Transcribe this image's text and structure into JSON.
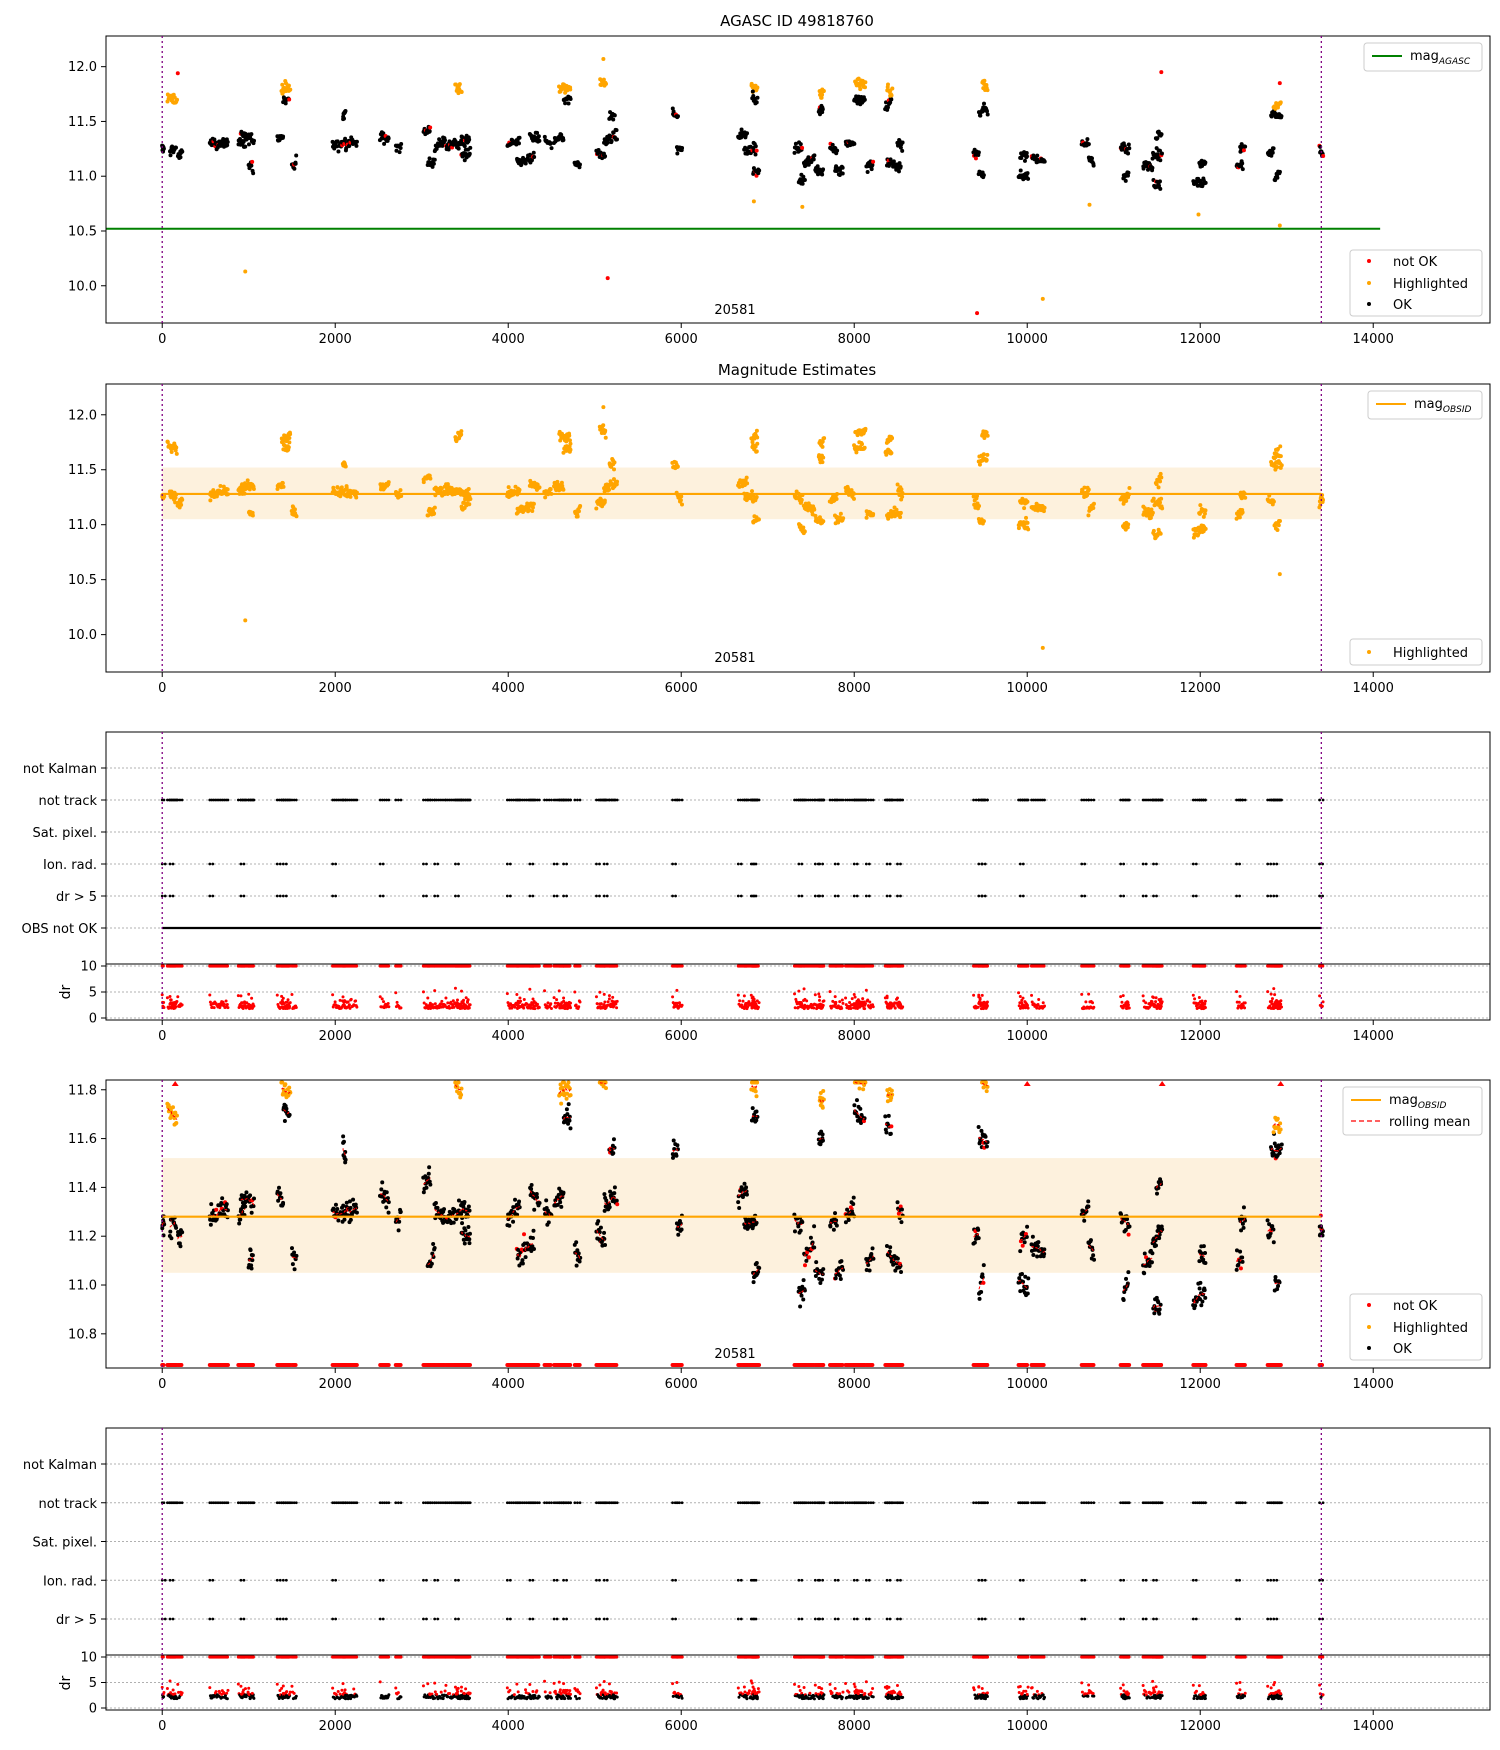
{
  "figure": {
    "obsid_label": "20581"
  },
  "chart_data": [
    {
      "id": "p1",
      "type": "scatter",
      "title": "AGASC ID 49818760",
      "xlim": [
        -650,
        15350
      ],
      "ylim": [
        9.66,
        12.28
      ],
      "xticks": [
        0,
        2000,
        4000,
        6000,
        8000,
        10000,
        12000,
        14000
      ],
      "yticks": [
        10.0,
        10.5,
        11.0,
        11.5,
        12.0
      ],
      "vlines": [
        0,
        13400
      ],
      "hline": {
        "y": 10.52,
        "x0": -650,
        "x1": 14080,
        "color": "#008000",
        "label": "mag_AGASC"
      },
      "point_legend": [
        {
          "label": "not OK",
          "color": "#ff0000"
        },
        {
          "label": "Highlighted",
          "color": "#ffa500"
        },
        {
          "label": "OK",
          "color": "#000000"
        }
      ],
      "outliers": [
        {
          "x": 960,
          "y": 10.13,
          "color": "#ffa500"
        },
        {
          "x": 5150,
          "y": 10.07,
          "color": "#ff0000"
        },
        {
          "x": 9420,
          "y": 9.75,
          "color": "#ff0000"
        },
        {
          "x": 10180,
          "y": 9.88,
          "color": "#ffa500"
        },
        {
          "x": 180,
          "y": 11.94,
          "color": "#ff0000"
        },
        {
          "x": 11550,
          "y": 11.95,
          "color": "#ff0000"
        },
        {
          "x": 12920,
          "y": 11.85,
          "color": "#ff0000"
        },
        {
          "x": 5100,
          "y": 12.07,
          "color": "#ffa500"
        },
        {
          "x": 6840,
          "y": 10.77,
          "color": "#ffa500"
        },
        {
          "x": 7400,
          "y": 10.72,
          "color": "#ffa500"
        },
        {
          "x": 10720,
          "y": 10.74,
          "color": "#ffa500"
        },
        {
          "x": 11980,
          "y": 10.65,
          "color": "#ffa500"
        },
        {
          "x": 12920,
          "y": 10.55,
          "color": "#ffa500"
        }
      ]
    },
    {
      "id": "p2",
      "type": "scatter",
      "title": "Magnitude Estimates",
      "xlim": [
        -650,
        15350
      ],
      "ylim": [
        9.66,
        12.28
      ],
      "xticks": [
        0,
        2000,
        4000,
        6000,
        8000,
        10000,
        12000,
        14000
      ],
      "yticks": [
        10.0,
        10.5,
        11.0,
        11.5,
        12.0
      ],
      "vlines": [
        0,
        13400
      ],
      "mean": {
        "y": 11.28,
        "band": [
          11.05,
          11.52
        ],
        "x0": 0,
        "x1": 13400,
        "color": "#ffa500",
        "label": "mag_OBSID"
      },
      "point_legend": [
        {
          "label": "Highlighted",
          "color": "#ffa500"
        }
      ],
      "outliers": [
        {
          "x": 960,
          "y": 10.13,
          "color": "#ffa500"
        },
        {
          "x": 10180,
          "y": 9.88,
          "color": "#ffa500"
        },
        {
          "x": 5100,
          "y": 12.07,
          "color": "#ffa500"
        },
        {
          "x": 12920,
          "y": 10.55,
          "color": "#ffa500"
        }
      ]
    },
    {
      "id": "p3",
      "type": "scatter",
      "title": "",
      "xlim": [
        -650,
        15350
      ],
      "xticks": [
        0,
        2000,
        4000,
        6000,
        8000,
        10000,
        12000,
        14000
      ],
      "vlines": [
        0,
        13400
      ],
      "flag_labels": [
        "not Kalman",
        "not track",
        "Sat. pixel.",
        "Ion. rad.",
        "dr > 5",
        "OBS not OK"
      ],
      "flags_active": {
        "not track": "dense",
        "Ion. rad.": "sparse",
        "dr > 5": "sparse",
        "OBS not OK": "full"
      },
      "dr_ylabel": "dr",
      "dr_yticks": [
        0,
        5,
        10
      ],
      "dr_ylim": [
        0,
        10
      ]
    },
    {
      "id": "p4",
      "type": "scatter",
      "title": "",
      "xlim": [
        -650,
        15350
      ],
      "ylim": [
        10.66,
        11.84
      ],
      "xticks": [
        0,
        2000,
        4000,
        6000,
        8000,
        10000,
        12000,
        14000
      ],
      "yticks": [
        10.8,
        11.0,
        11.2,
        11.4,
        11.6,
        11.8
      ],
      "vlines": [
        0,
        13400
      ],
      "mean": {
        "y": 11.28,
        "band": [
          11.05,
          11.52
        ],
        "x0": 0,
        "x1": 13400,
        "color": "#ffa500",
        "label": "mag_OBSID"
      },
      "line_legend": [
        {
          "label": "mag_OBSID",
          "color": "#ffa500",
          "style": "solid"
        },
        {
          "label": "rolling mean",
          "color": "#ff0000",
          "style": "dashed"
        }
      ],
      "point_legend": [
        {
          "label": "not OK",
          "color": "#ff0000"
        },
        {
          "label": "Highlighted",
          "color": "#ffa500"
        },
        {
          "label": "OK",
          "color": "#000000"
        }
      ]
    },
    {
      "id": "p5",
      "type": "scatter",
      "title": "",
      "xlim": [
        -650,
        15350
      ],
      "xticks": [
        0,
        2000,
        4000,
        6000,
        8000,
        10000,
        12000,
        14000
      ],
      "vlines": [
        0,
        13400
      ],
      "flag_labels": [
        "not Kalman",
        "not track",
        "Sat. pixel.",
        "Ion. rad.",
        "dr > 5"
      ],
      "flags_active": {
        "not track": "dense",
        "Ion. rad.": "sparse",
        "dr > 5": "sparse"
      },
      "dr_ylabel": "dr",
      "dr_yticks": [
        0,
        5,
        10
      ],
      "dr_ylim": [
        0,
        10
      ]
    }
  ],
  "observations": [
    {
      "x0": 0,
      "x1": 20,
      "m": 11.25,
      "hi": false
    },
    {
      "x0": 60,
      "x1": 170,
      "m": 11.7,
      "hi": true
    },
    {
      "x0": 90,
      "x1": 160,
      "m": 11.25,
      "hi": false
    },
    {
      "x0": 180,
      "x1": 230,
      "m": 11.2,
      "hi": false
    },
    {
      "x0": 550,
      "x1": 760,
      "m": 11.3,
      "hi": false
    },
    {
      "x0": 880,
      "x1": 960,
      "m": 11.3,
      "hi": false
    },
    {
      "x0": 910,
      "x1": 1060,
      "m": 11.35,
      "hi": false
    },
    {
      "x0": 1000,
      "x1": 1050,
      "m": 11.1,
      "hi": false
    },
    {
      "x0": 1330,
      "x1": 1400,
      "m": 11.35,
      "hi": false
    },
    {
      "x0": 1380,
      "x1": 1480,
      "m": 11.8,
      "hi": true
    },
    {
      "x0": 1400,
      "x1": 1470,
      "m": 11.7,
      "hi": false
    },
    {
      "x0": 1500,
      "x1": 1550,
      "m": 11.12,
      "hi": false
    },
    {
      "x0": 1970,
      "x1": 2250,
      "m": 11.3,
      "hi": false
    },
    {
      "x0": 2090,
      "x1": 2120,
      "m": 11.55,
      "hi": false
    },
    {
      "x0": 2520,
      "x1": 2620,
      "m": 11.35,
      "hi": false
    },
    {
      "x0": 2700,
      "x1": 2760,
      "m": 11.28,
      "hi": false
    },
    {
      "x0": 3020,
      "x1": 3100,
      "m": 11.42,
      "hi": false
    },
    {
      "x0": 3070,
      "x1": 3150,
      "m": 11.12,
      "hi": false
    },
    {
      "x0": 3150,
      "x1": 3270,
      "m": 11.3,
      "hi": false
    },
    {
      "x0": 3280,
      "x1": 3550,
      "m": 11.3,
      "hi": false
    },
    {
      "x0": 3390,
      "x1": 3460,
      "m": 11.8,
      "hi": true
    },
    {
      "x0": 3460,
      "x1": 3560,
      "m": 11.2,
      "hi": false
    },
    {
      "x0": 3990,
      "x1": 4130,
      "m": 11.3,
      "hi": false
    },
    {
      "x0": 4100,
      "x1": 4300,
      "m": 11.15,
      "hi": false
    },
    {
      "x0": 4250,
      "x1": 4360,
      "m": 11.35,
      "hi": false
    },
    {
      "x0": 4420,
      "x1": 4500,
      "m": 11.3,
      "hi": false
    },
    {
      "x0": 4530,
      "x1": 4640,
      "m": 11.35,
      "hi": false
    },
    {
      "x0": 4590,
      "x1": 4720,
      "m": 11.8,
      "hi": true
    },
    {
      "x0": 4640,
      "x1": 4720,
      "m": 11.7,
      "hi": false
    },
    {
      "x0": 4770,
      "x1": 4830,
      "m": 11.12,
      "hi": false
    },
    {
      "x0": 5020,
      "x1": 5120,
      "m": 11.2,
      "hi": false
    },
    {
      "x0": 5060,
      "x1": 5130,
      "m": 11.85,
      "hi": true
    },
    {
      "x0": 5110,
      "x1": 5260,
      "m": 11.35,
      "hi": false
    },
    {
      "x0": 5170,
      "x1": 5230,
      "m": 11.55,
      "hi": false
    },
    {
      "x0": 5900,
      "x1": 5960,
      "m": 11.55,
      "hi": false
    },
    {
      "x0": 5950,
      "x1": 6010,
      "m": 11.25,
      "hi": false
    },
    {
      "x0": 6660,
      "x1": 6760,
      "m": 11.38,
      "hi": false
    },
    {
      "x0": 6730,
      "x1": 6870,
      "m": 11.25,
      "hi": false
    },
    {
      "x0": 6810,
      "x1": 6880,
      "m": 11.8,
      "hi": true
    },
    {
      "x0": 6820,
      "x1": 6880,
      "m": 11.7,
      "hi": false
    },
    {
      "x0": 6830,
      "x1": 6900,
      "m": 11.05,
      "hi": false
    },
    {
      "x0": 7310,
      "x1": 7400,
      "m": 11.25,
      "hi": false
    },
    {
      "x0": 7360,
      "x1": 7430,
      "m": 10.97,
      "hi": false
    },
    {
      "x0": 7420,
      "x1": 7540,
      "m": 11.15,
      "hi": false
    },
    {
      "x0": 7550,
      "x1": 7640,
      "m": 11.05,
      "hi": false
    },
    {
      "x0": 7590,
      "x1": 7640,
      "m": 11.6,
      "hi": false
    },
    {
      "x0": 7600,
      "x1": 7650,
      "m": 11.75,
      "hi": true
    },
    {
      "x0": 7720,
      "x1": 7800,
      "m": 11.25,
      "hi": false
    },
    {
      "x0": 7780,
      "x1": 7870,
      "m": 11.05,
      "hi": false
    },
    {
      "x0": 7900,
      "x1": 8000,
      "m": 11.3,
      "hi": false
    },
    {
      "x0": 8000,
      "x1": 8120,
      "m": 11.7,
      "hi": false
    },
    {
      "x0": 8010,
      "x1": 8130,
      "m": 11.85,
      "hi": true
    },
    {
      "x0": 8140,
      "x1": 8220,
      "m": 11.1,
      "hi": false
    },
    {
      "x0": 8360,
      "x1": 8430,
      "m": 11.65,
      "hi": false
    },
    {
      "x0": 8380,
      "x1": 8440,
      "m": 11.78,
      "hi": true
    },
    {
      "x0": 8380,
      "x1": 8540,
      "m": 11.1,
      "hi": false
    },
    {
      "x0": 8500,
      "x1": 8560,
      "m": 11.3,
      "hi": false
    },
    {
      "x0": 9380,
      "x1": 9440,
      "m": 11.2,
      "hi": false
    },
    {
      "x0": 9440,
      "x1": 9500,
      "m": 11.02,
      "hi": false
    },
    {
      "x0": 9440,
      "x1": 9540,
      "m": 11.6,
      "hi": false
    },
    {
      "x0": 9480,
      "x1": 9540,
      "m": 11.82,
      "hi": true
    },
    {
      "x0": 9900,
      "x1": 10010,
      "m": 11.0,
      "hi": false
    },
    {
      "x0": 9920,
      "x1": 10000,
      "m": 11.2,
      "hi": false
    },
    {
      "x0": 10050,
      "x1": 10200,
      "m": 11.15,
      "hi": false
    },
    {
      "x0": 10630,
      "x1": 10710,
      "m": 11.3,
      "hi": false
    },
    {
      "x0": 10710,
      "x1": 10770,
      "m": 11.15,
      "hi": false
    },
    {
      "x0": 11080,
      "x1": 11180,
      "m": 11.25,
      "hi": false
    },
    {
      "x0": 11110,
      "x1": 11170,
      "m": 11.0,
      "hi": false
    },
    {
      "x0": 11340,
      "x1": 11450,
      "m": 11.1,
      "hi": false
    },
    {
      "x0": 11450,
      "x1": 11560,
      "m": 11.2,
      "hi": false
    },
    {
      "x0": 11460,
      "x1": 11540,
      "m": 10.92,
      "hi": false
    },
    {
      "x0": 11490,
      "x1": 11550,
      "m": 11.4,
      "hi": false
    },
    {
      "x0": 11920,
      "x1": 12060,
      "m": 10.95,
      "hi": false
    },
    {
      "x0": 11990,
      "x1": 12060,
      "m": 11.12,
      "hi": false
    },
    {
      "x0": 12420,
      "x1": 12490,
      "m": 11.1,
      "hi": false
    },
    {
      "x0": 12460,
      "x1": 12520,
      "m": 11.27,
      "hi": false
    },
    {
      "x0": 12780,
      "x1": 12850,
      "m": 11.22,
      "hi": false
    },
    {
      "x0": 12820,
      "x1": 12940,
      "m": 11.55,
      "hi": false
    },
    {
      "x0": 12850,
      "x1": 12930,
      "m": 11.65,
      "hi": true
    },
    {
      "x0": 12860,
      "x1": 12920,
      "m": 11.0,
      "hi": false
    },
    {
      "x0": 13380,
      "x1": 13420,
      "m": 11.22,
      "hi": false
    }
  ]
}
